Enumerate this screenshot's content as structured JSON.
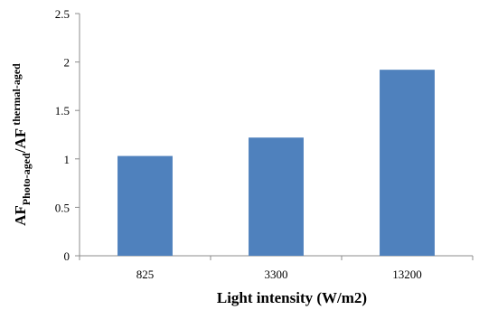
{
  "chart_data": {
    "type": "bar",
    "categories": [
      "825",
      "3300",
      "13200"
    ],
    "values": [
      1.03,
      1.22,
      1.92
    ],
    "xlabel": "Light intensity (W/m2)",
    "ylabel": {
      "main_1": "AF",
      "sub_1": "Photo-aged",
      "main_2": "/AF",
      "sub_2": " thermal-aged"
    },
    "ylim": [
      0,
      2.5
    ],
    "yticks": [
      "0",
      "0.5",
      "1",
      "1.5",
      "2",
      "2.5"
    ],
    "grid": false,
    "legend": "none",
    "bar_color": "#4f81bd"
  }
}
